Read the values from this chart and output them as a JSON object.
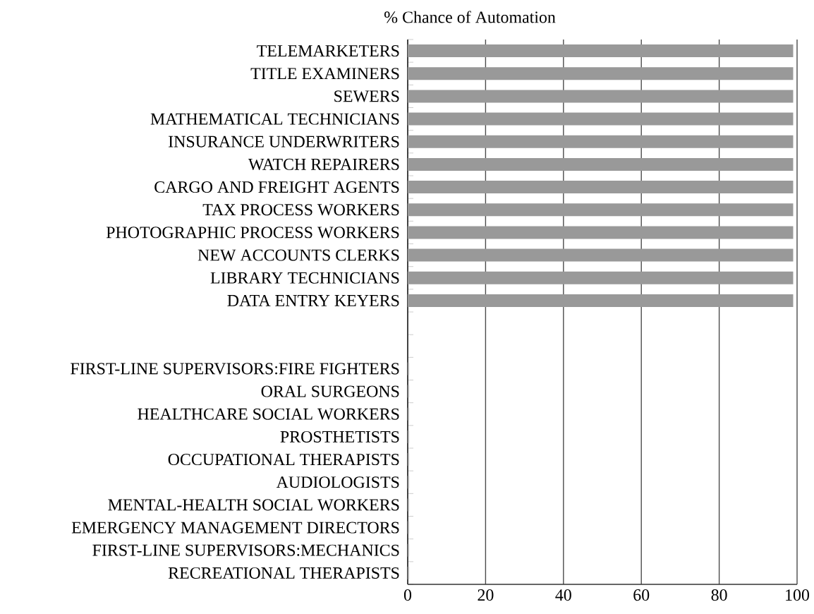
{
  "chart_data": {
    "type": "bar",
    "orientation": "horizontal",
    "title": "% Chance of Automation",
    "categories": [
      "TELEMARKETERS",
      "TITLE EXAMINERS",
      "SEWERS",
      "MATHEMATICAL TECHNICIANS",
      "INSURANCE UNDERWRITERS",
      "WATCH REPAIRERS",
      "CARGO AND FREIGHT AGENTS",
      "TAX PROCESS WORKERS",
      "PHOTOGRAPHIC PROCESS WORKERS",
      "NEW ACCOUNTS CLERKS",
      "LIBRARY TECHNICIANS",
      "DATA ENTRY KEYERS",
      null,
      null,
      "FIRST-LINE SUPERVISORS:FIRE FIGHTERS",
      "ORAL SURGEONS",
      "HEALTHCARE SOCIAL WORKERS",
      "PROSTHETISTS",
      "OCCUPATIONAL THERAPISTS",
      "AUDIOLOGISTS",
      "MENTAL-HEALTH SOCIAL WORKERS",
      "EMERGENCY MANAGEMENT DIRECTORS",
      "FIRST-LINE SUPERVISORS:MECHANICS",
      "RECREATIONAL THERAPISTS"
    ],
    "values": [
      99,
      99,
      99,
      99,
      99,
      99,
      99,
      99,
      99,
      99,
      99,
      99,
      null,
      null,
      0.3,
      0.3,
      0.3,
      0.3,
      0.3,
      0.3,
      0.3,
      0.3,
      0.3,
      0.3
    ],
    "color": "#999999",
    "xlim": [
      0,
      100
    ],
    "xticks": [
      0,
      20,
      40,
      60,
      80,
      100
    ],
    "grid": "x"
  }
}
